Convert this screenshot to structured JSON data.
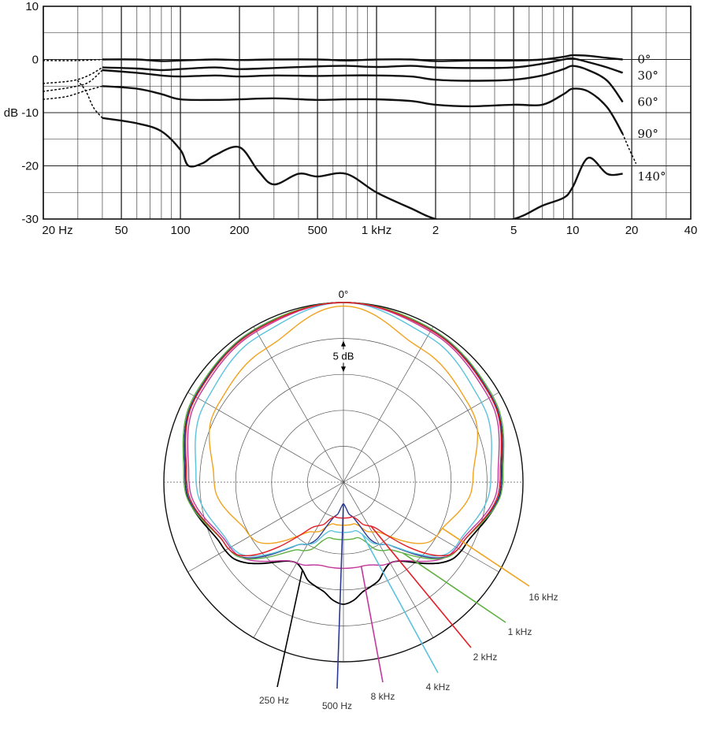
{
  "chart_data": [
    {
      "type": "line",
      "title": "",
      "xlabel": "",
      "ylabel": "dB",
      "xscale": "log",
      "xlim": [
        20,
        40000
      ],
      "ylim": [
        -30,
        10
      ],
      "x_tick_labels": [
        "20 Hz",
        "50",
        "100",
        "200",
        "500",
        "1  kHz",
        "2",
        "5",
        "10",
        "20",
        "40"
      ],
      "y_tick_labels": [
        "10",
        "0",
        "dB -10",
        "-20",
        "-30"
      ],
      "grid": true,
      "legend": "right-side curve labels",
      "series": [
        {
          "name": "0°",
          "x": [
            40,
            60,
            80,
            100,
            150,
            200,
            300,
            500,
            700,
            1000,
            1500,
            2000,
            3000,
            5000,
            7000,
            9000,
            10000,
            12000,
            15000,
            18000
          ],
          "y": [
            0,
            0,
            -0.3,
            -0.2,
            0,
            -0.1,
            0,
            0,
            -0.2,
            0,
            0,
            -0.3,
            -0.2,
            -0.2,
            0,
            0.5,
            0.8,
            0.7,
            0.3,
            0
          ]
        },
        {
          "name": "30°",
          "x": [
            40,
            60,
            80,
            100,
            150,
            200,
            300,
            500,
            700,
            1000,
            1500,
            2000,
            3000,
            5000,
            7000,
            9000,
            10000,
            12000,
            15000,
            18000
          ],
          "y": [
            -1.5,
            -1.7,
            -2,
            -1.8,
            -1.5,
            -1.8,
            -1.6,
            -1.3,
            -1.2,
            -1.4,
            -1.2,
            -1.5,
            -1.6,
            -1.5,
            -0.8,
            0,
            0.2,
            -0.5,
            -1.5,
            -2.5
          ]
        },
        {
          "name": "60°",
          "x": [
            40,
            60,
            80,
            100,
            150,
            200,
            300,
            500,
            700,
            1000,
            1500,
            2000,
            3000,
            5000,
            7000,
            9000,
            10000,
            12000,
            15000,
            18000
          ],
          "y": [
            -2,
            -2.5,
            -3,
            -3.2,
            -3,
            -3.2,
            -3,
            -3.1,
            -3,
            -3,
            -3.2,
            -3.8,
            -4,
            -3.8,
            -3,
            -1.8,
            -1.2,
            -2,
            -4,
            -8
          ]
        },
        {
          "name": "90°",
          "x": [
            40,
            60,
            80,
            100,
            150,
            200,
            300,
            500,
            700,
            1000,
            1500,
            2000,
            3000,
            5000,
            7000,
            9000,
            10000,
            12000,
            15000,
            18000
          ],
          "y": [
            -5,
            -5.5,
            -6.5,
            -7.5,
            -7.6,
            -7.5,
            -7.3,
            -7.6,
            -7.5,
            -7.5,
            -7.8,
            -8.5,
            -8.8,
            -8.5,
            -8.5,
            -6.5,
            -5.5,
            -6,
            -9,
            -14
          ]
        },
        {
          "name": "140°",
          "x": [
            40,
            60,
            80,
            100,
            110,
            130,
            150,
            200,
            250,
            300,
            400,
            500,
            700,
            1000,
            1500,
            2000,
            3000,
            5000,
            7000,
            9000,
            10000,
            12000,
            15000,
            18000
          ],
          "y": [
            -11,
            -12,
            -13.5,
            -17,
            -20,
            -19.5,
            -18,
            -16.5,
            -21,
            -23.5,
            -21.5,
            -22,
            -21.5,
            -25,
            -28,
            -30,
            -31,
            -30,
            -27.5,
            -26,
            -24,
            -18.5,
            -21.5,
            -21.5
          ]
        }
      ],
      "curve_labels": [
        "0°",
        "30°",
        "60°",
        "90°",
        "140°"
      ]
    },
    {
      "type": "polar",
      "title": "",
      "top_label": "0°",
      "scale_label": "5 dB",
      "ring_step_db": 5,
      "rings": 5,
      "series": [
        {
          "name": "250 Hz",
          "color": "#000000",
          "angles_deg": [
            0,
            30,
            60,
            90,
            120,
            150,
            165,
            180
          ],
          "level_db": [
            0,
            -0.5,
            -1.2,
            -3,
            -6,
            -12,
            -10,
            -8
          ]
        },
        {
          "name": "500 Hz",
          "color": "#2b3990",
          "angles_deg": [
            0,
            30,
            60,
            90,
            120,
            150,
            165,
            180
          ],
          "level_db": [
            0,
            -0.5,
            -1.2,
            -3,
            -6.5,
            -15,
            -20,
            -22
          ]
        },
        {
          "name": "8 kHz",
          "color": "#c2399b",
          "angles_deg": [
            0,
            30,
            60,
            90,
            120,
            150,
            165,
            180
          ],
          "level_db": [
            0,
            -0.8,
            -1.6,
            -3.5,
            -6.8,
            -12,
            -13,
            -13
          ]
        },
        {
          "name": "4 kHz",
          "color": "#5bc2dd",
          "angles_deg": [
            0,
            30,
            60,
            90,
            120,
            150,
            165,
            180
          ],
          "level_db": [
            0,
            -1.5,
            -2.8,
            -4.5,
            -7,
            -15,
            -18,
            -18
          ]
        },
        {
          "name": "2 kHz",
          "color": "#e41d25",
          "angles_deg": [
            0,
            30,
            60,
            90,
            120,
            150,
            165,
            180
          ],
          "level_db": [
            0,
            -0.6,
            -1.3,
            -3.2,
            -6.5,
            -18,
            -20,
            -20
          ]
        },
        {
          "name": "1 kHz",
          "color": "#5fb043",
          "angles_deg": [
            0,
            30,
            60,
            90,
            120,
            150,
            165,
            180
          ],
          "level_db": [
            0,
            -0.4,
            -1.0,
            -2.8,
            -6.5,
            -14,
            -17,
            -17
          ]
        },
        {
          "name": "16 kHz",
          "color": "#f2a21d",
          "angles_deg": [
            0,
            30,
            60,
            90,
            120,
            150,
            165,
            180
          ],
          "level_db": [
            -0.5,
            -3.5,
            -4.5,
            -7,
            -10,
            -17,
            -19,
            -19
          ]
        }
      ]
    }
  ]
}
